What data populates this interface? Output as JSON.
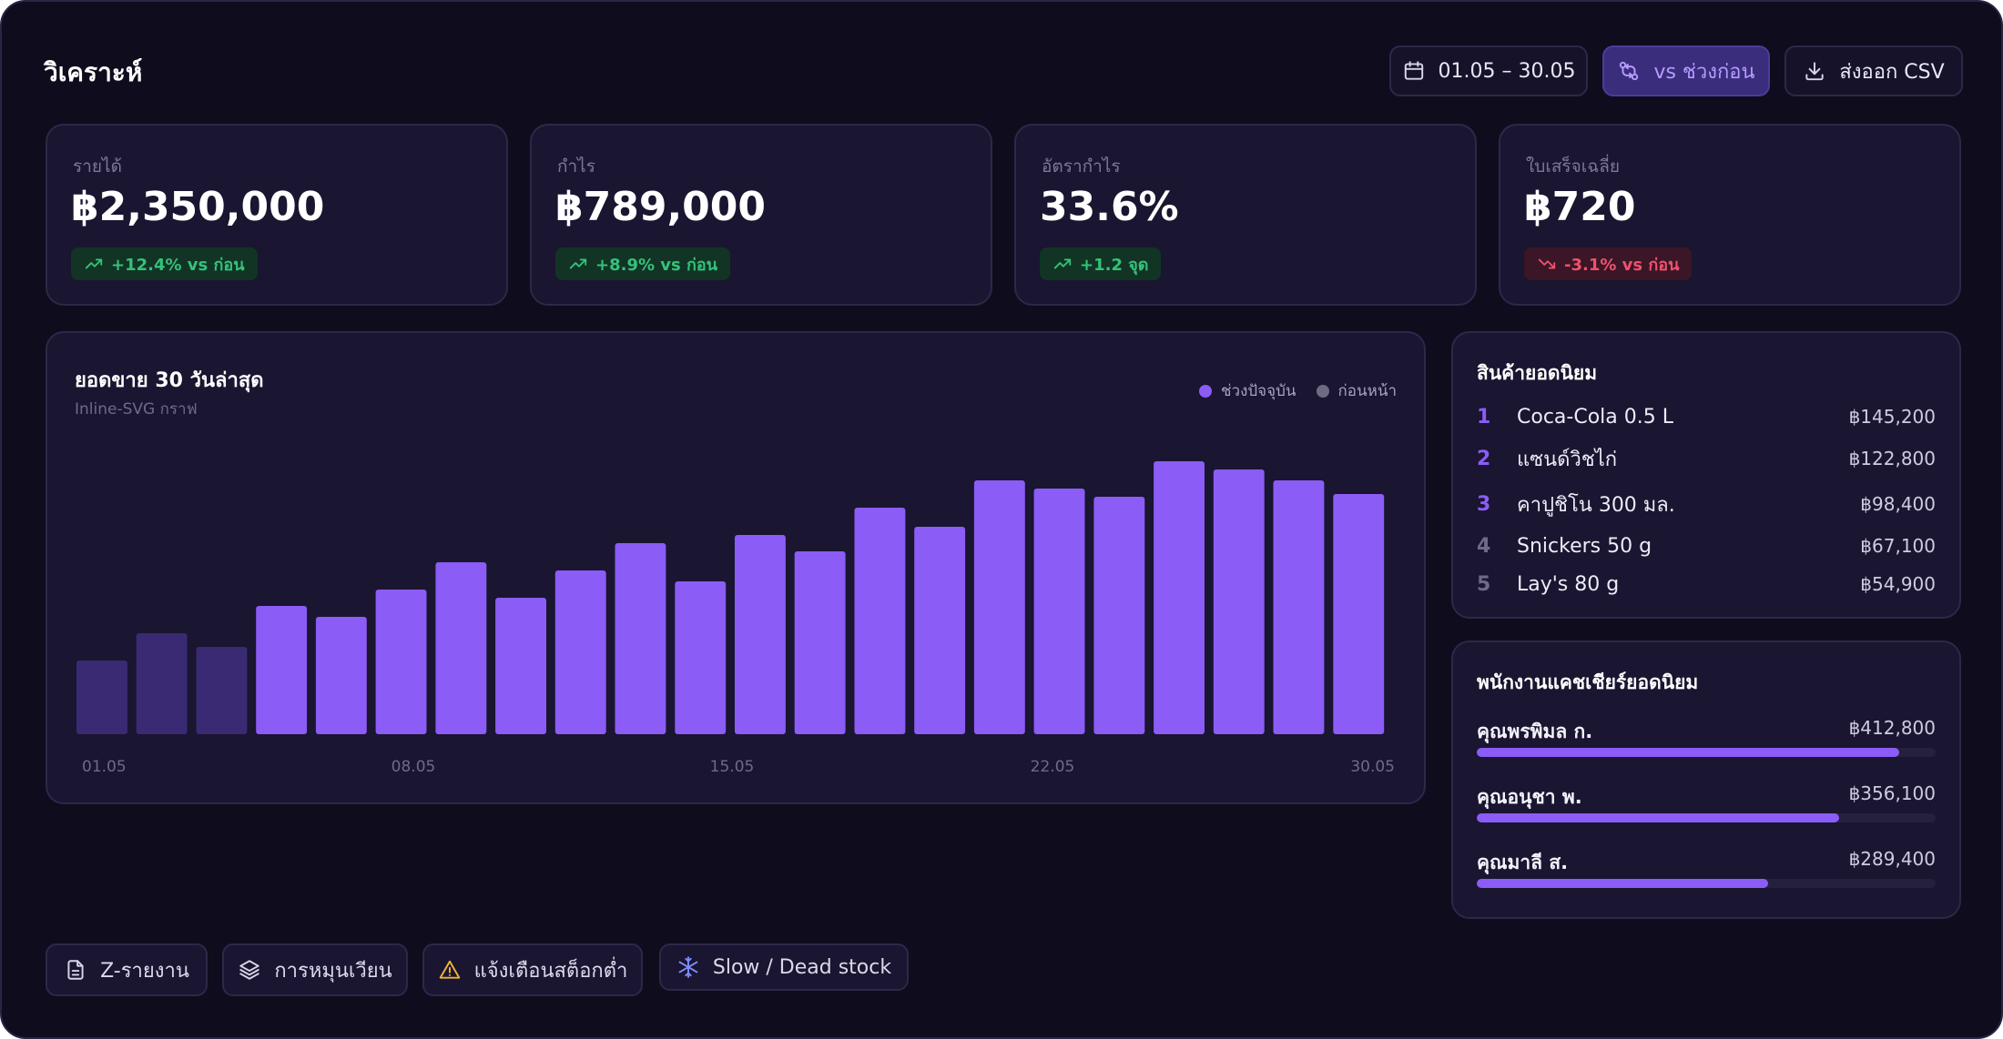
{
  "header": {
    "title": "วิเคราะห์",
    "date_range": "01.05 – 30.05",
    "compare_label": "vs ช่วงก่อน",
    "export_label": "ส่งออก CSV"
  },
  "kpis": [
    {
      "label": "รายได้",
      "value": "฿2,350,000",
      "delta": "+12.4% vs ก่อน",
      "trend": "up"
    },
    {
      "label": "กำไร",
      "value": "฿789,000",
      "delta": "+8.9% vs ก่อน",
      "trend": "up"
    },
    {
      "label": "อัตรากำไร",
      "value": "33.6%",
      "delta": "+1.2 จุด",
      "trend": "up"
    },
    {
      "label": "ใบเสร็จเฉลี่ย",
      "value": "฿720",
      "delta": "-3.1% vs ก่อน",
      "trend": "down"
    }
  ],
  "sales_chart": {
    "title": "ยอดขาย 30 วันล่าสุด",
    "subtitle": "Inline-SVG กราฟ",
    "legend": [
      {
        "label": "ช่วงปัจจุบัน",
        "color": "#8b5cf6"
      },
      {
        "label": "ก่อนหน้า",
        "color": "#6f6a84"
      }
    ]
  },
  "chart_data": {
    "type": "bar",
    "x_ticks": [
      "01.05",
      "08.05",
      "15.05",
      "22.05",
      "30.05"
    ],
    "values": [
      27,
      37,
      32,
      47,
      43,
      53,
      63,
      50,
      60,
      70,
      56,
      73,
      67,
      83,
      76,
      93,
      90,
      87,
      100,
      97,
      93,
      88
    ],
    "highlight": [
      false,
      false,
      false,
      true,
      true,
      true,
      true,
      true,
      true,
      true,
      true,
      true,
      true,
      true,
      true,
      true,
      true,
      true,
      true,
      true,
      true,
      true
    ],
    "colors": {
      "current": "#8b5cf6",
      "previous": "#3a2a73"
    },
    "ylim": [
      0,
      100
    ],
    "grid": false
  },
  "top_products": {
    "title": "สินค้ายอดนิยม",
    "items": [
      {
        "rank": "1",
        "name": "Coca-Cola 0.5 L",
        "value": "฿145,200"
      },
      {
        "rank": "2",
        "name": "แซนด์วิชไก่",
        "value": "฿122,800"
      },
      {
        "rank": "3",
        "name": "คาปูชิโน 300 มล.",
        "value": "฿98,400"
      },
      {
        "rank": "4",
        "name": "Snickers 50 g",
        "value": "฿67,100"
      },
      {
        "rank": "5",
        "name": "Lay's 80 g",
        "value": "฿54,900"
      }
    ]
  },
  "top_cashiers": {
    "title": "พนักงานแคชเชียร์ยอดนิยม",
    "items": [
      {
        "name": "คุณพรพิมล ก.",
        "value": "฿412,800",
        "level": 0.92
      },
      {
        "name": "คุณอนุชา พ.",
        "value": "฿356,100",
        "level": 0.79
      },
      {
        "name": "คุณมาลี ส.",
        "value": "฿289,400",
        "level": 0.635
      }
    ]
  },
  "footer_buttons": {
    "z_report": "Z-รายงาน",
    "rotation": "การหมุนเวียน",
    "low_stock": "แจ้งเตือนสต็อกต่ำ",
    "dead_stock": "Slow / Dead stock"
  }
}
